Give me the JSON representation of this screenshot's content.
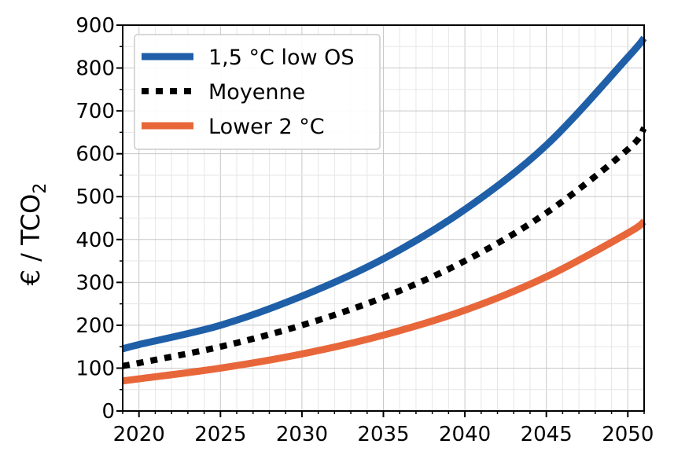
{
  "chart_data": {
    "type": "line",
    "title": "",
    "xlabel": "",
    "ylabel": "€ / TCO",
    "ylabel_subscript": "2",
    "xlim": [
      2019,
      2051
    ],
    "ylim": [
      0,
      900
    ],
    "xticks": [
      2020,
      2025,
      2030,
      2035,
      2040,
      2045,
      2050
    ],
    "yticks": [
      0,
      100,
      200,
      300,
      400,
      500,
      600,
      700,
      800,
      900
    ],
    "grid": true,
    "legend_position": "top-left",
    "x": [
      2019,
      2020,
      2025,
      2030,
      2035,
      2040,
      2045,
      2050,
      2051
    ],
    "series": [
      {
        "name": "1,5 °C low OS",
        "color": "#1f5fa8",
        "style": "solid",
        "values": [
          145,
          155,
          200,
          268,
          355,
          470,
          620,
          825,
          870
        ]
      },
      {
        "name": "Moyenne",
        "color": "#000000",
        "style": "dotted",
        "values": [
          105,
          112,
          150,
          200,
          265,
          350,
          462,
          610,
          660
        ]
      },
      {
        "name": "Lower 2 °C",
        "color": "#e8673a",
        "style": "solid",
        "values": [
          70,
          75,
          100,
          133,
          177,
          235,
          313,
          415,
          442
        ]
      }
    ]
  }
}
